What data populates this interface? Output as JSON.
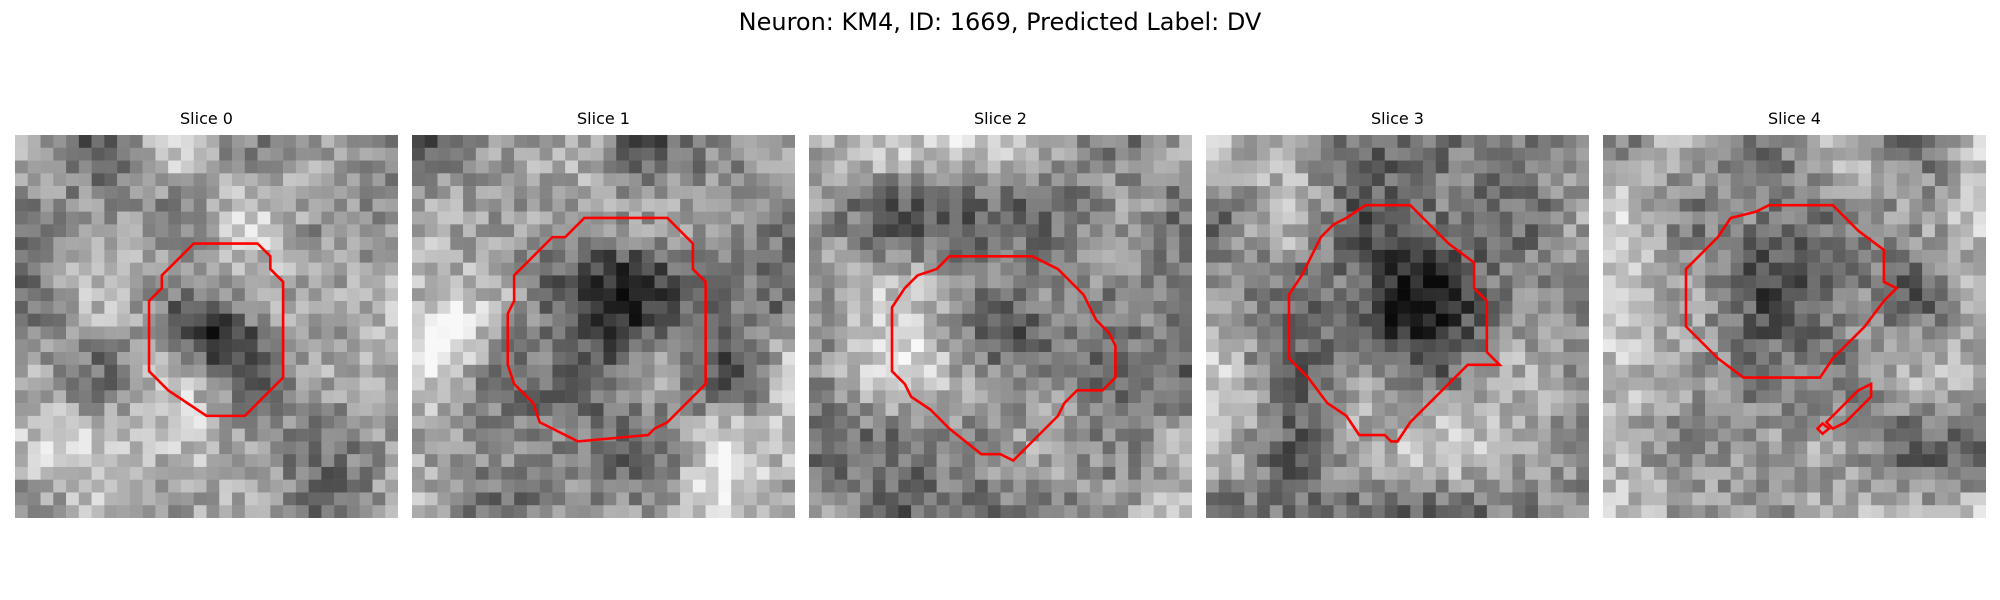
{
  "figure": {
    "title": "Neuron: KM4, ID: 1669, Predicted Label: DV"
  },
  "colors": {
    "contour": "#ff0000",
    "background": "#ffffff"
  },
  "panels": [
    {
      "title": "Slice 0",
      "image": "grayscale-microscopy-slice",
      "overlay": "red-contour"
    },
    {
      "title": "Slice 1",
      "image": "grayscale-microscopy-slice",
      "overlay": "red-contour"
    },
    {
      "title": "Slice 2",
      "image": "grayscale-microscopy-slice",
      "overlay": "red-contour"
    },
    {
      "title": "Slice 3",
      "image": "grayscale-microscopy-slice",
      "overlay": "red-contour"
    },
    {
      "title": "Slice 4",
      "image": "grayscale-microscopy-slice",
      "overlay": "red-contour"
    }
  ]
}
